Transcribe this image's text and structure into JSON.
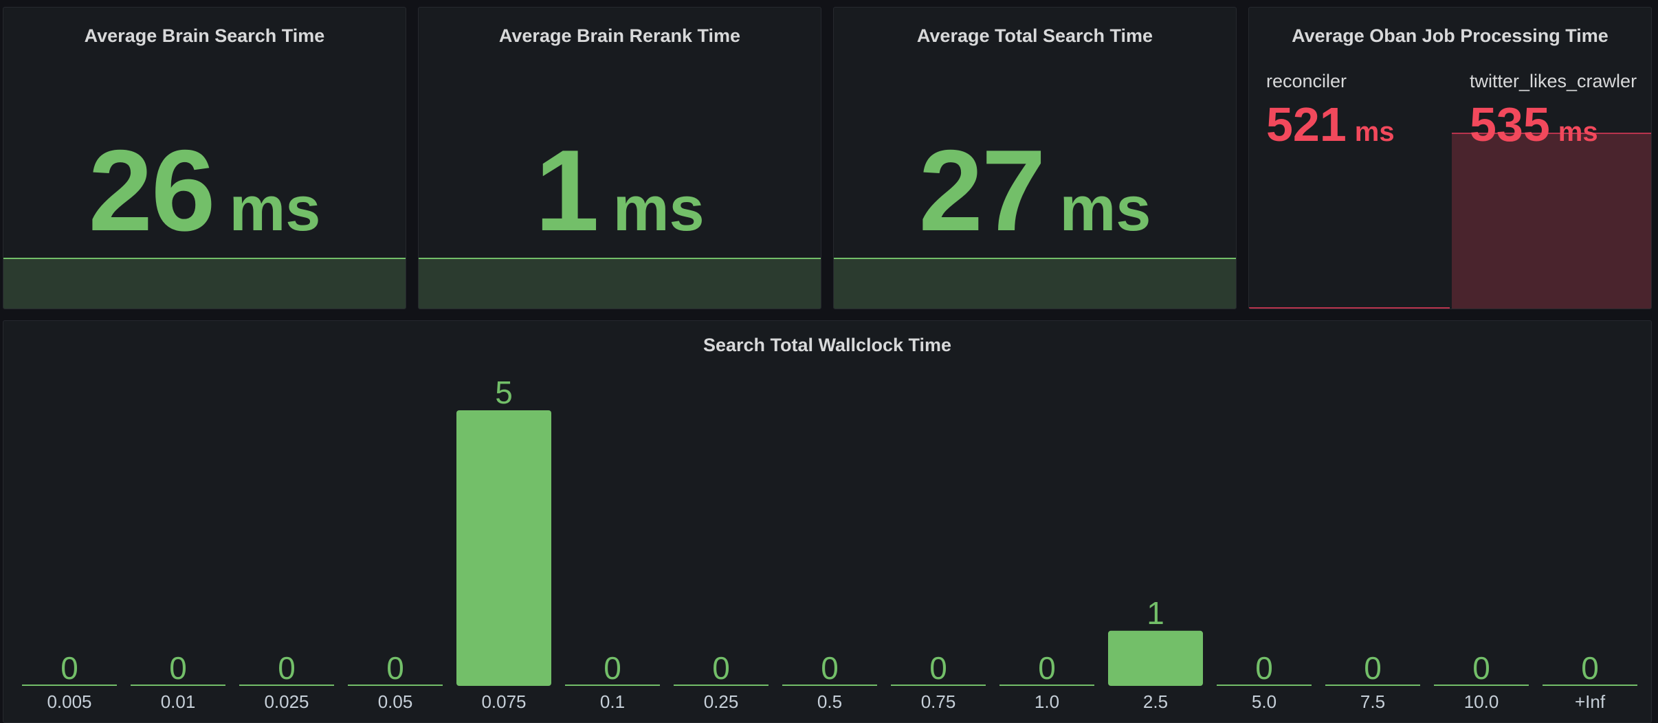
{
  "stat_panels": [
    {
      "title": "Average Brain Search Time",
      "value": "26",
      "unit": "ms"
    },
    {
      "title": "Average Brain Rerank Time",
      "value": "1",
      "unit": "ms"
    },
    {
      "title": "Average Total Search Time",
      "value": "27",
      "unit": "ms"
    }
  ],
  "oban_panel": {
    "title": "Average Oban Job Processing Time",
    "items": [
      {
        "label": "reconciler",
        "value": "521",
        "unit": "ms",
        "fill": 0
      },
      {
        "label": "twitter_likes_crawler",
        "value": "535",
        "unit": "ms",
        "fill": 1
      }
    ]
  },
  "histogram_panel": {
    "title": "Search Total Wallclock Time"
  },
  "colors": {
    "green": "#73bf69",
    "red": "#f2495c",
    "background": "#111217",
    "panel": "#181b1f"
  },
  "chart_data": {
    "type": "bar",
    "title": "Search Total Wallclock Time",
    "categories": [
      "0.005",
      "0.01",
      "0.025",
      "0.05",
      "0.075",
      "0.1",
      "0.25",
      "0.5",
      "0.75",
      "1.0",
      "2.5",
      "5.0",
      "7.5",
      "10.0",
      "+Inf"
    ],
    "values": [
      0,
      0,
      0,
      0,
      5,
      0,
      0,
      0,
      0,
      0,
      1,
      0,
      0,
      0,
      0
    ],
    "ylim": [
      0,
      5
    ],
    "grid": false,
    "show_values": true
  }
}
